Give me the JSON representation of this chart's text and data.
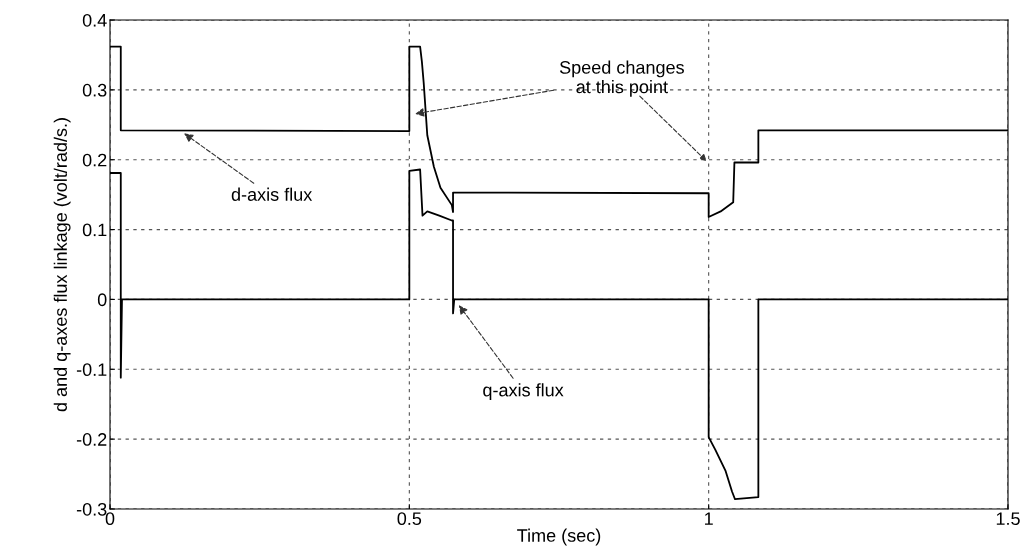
{
  "chart_data": {
    "type": "line",
    "xlabel": "Time (sec)",
    "ylabel": "d and q-axes flux linkage (volt/rad/s.)",
    "xlim": [
      0,
      1.5
    ],
    "xticks": [
      0,
      0.5,
      1,
      1.5
    ],
    "ylim": [
      -0.3,
      0.4
    ],
    "yticks": [
      -0.3,
      -0.2,
      -0.1,
      0,
      0.1,
      0.2,
      0.3,
      0.4
    ],
    "grid": true,
    "legend": false,
    "marker": "none",
    "line_style": "solid",
    "series": [
      {
        "color": "#000000",
        "x": [
          0,
          0.018,
          0.018,
          0.5,
          0.5,
          0.518,
          0.521,
          0.524,
          0.53,
          0.541,
          0.552,
          0.571,
          0.573,
          0.573,
          1.0,
          1.0,
          1.02,
          1.041,
          1.043,
          1.083,
          1.083,
          1.5
        ],
        "values": [
          0.362,
          0.362,
          0.242,
          0.241,
          0.362,
          0.362,
          0.34,
          0.31,
          0.235,
          0.19,
          0.16,
          0.135,
          0.125,
          0.153,
          0.152,
          0.118,
          0.126,
          0.139,
          0.196,
          0.196,
          0.242,
          0.242
        ]
      },
      {
        "color": "#000000",
        "x": [
          0,
          0.018,
          0.018,
          0.02,
          0.5,
          0.5,
          0.518,
          0.522,
          0.53,
          0.55,
          0.571,
          0.573,
          0.573,
          0.575,
          1.0,
          1.0,
          1.011,
          1.028,
          1.039,
          1.044,
          1.083,
          1.083,
          1.5
        ],
        "values": [
          0.181,
          0.181,
          -0.112,
          0,
          0,
          0.184,
          0.186,
          0.12,
          0.126,
          0.12,
          0.113,
          0.113,
          -0.02,
          0,
          0,
          -0.197,
          -0.215,
          -0.245,
          -0.275,
          -0.286,
          -0.283,
          0,
          0
        ]
      }
    ],
    "annotations": [
      {
        "text": "Speed changes\nat this point",
        "x": 0.505,
        "y": 0.265
      },
      {
        "text": "d-axis flux",
        "x": 0.12,
        "y": 0.24
      },
      {
        "text": "q-axis flux",
        "x": 0.58,
        "y": -0.005
      }
    ]
  }
}
